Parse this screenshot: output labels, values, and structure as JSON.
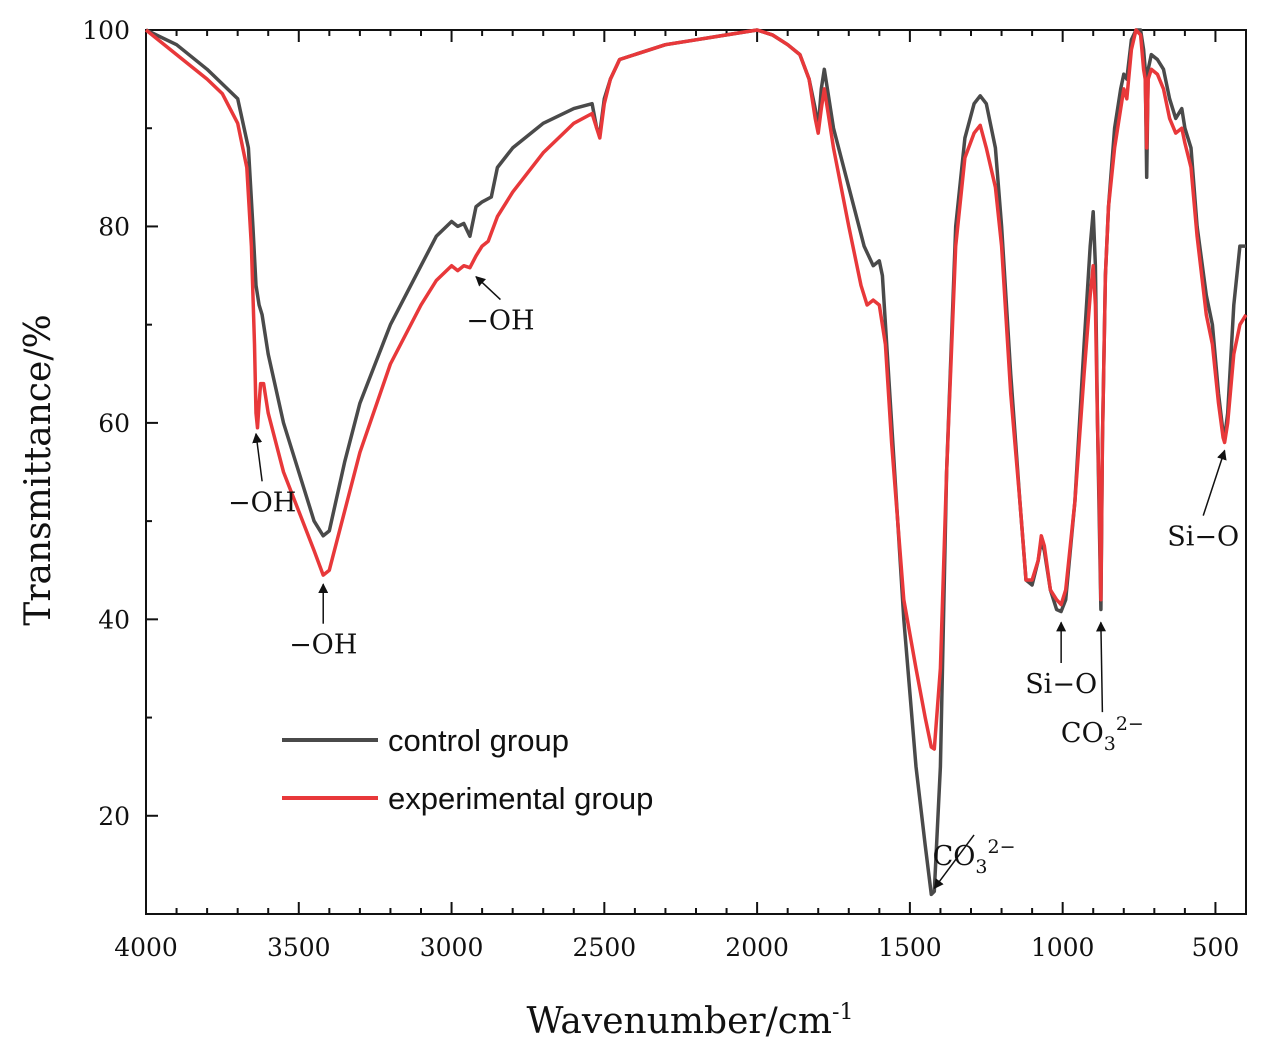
{
  "chart_data": {
    "type": "line",
    "title": "",
    "xlabel": "Wavenumber/cm",
    "xlabel_superscript": "-1",
    "ylabel": "Transmittance/%",
    "xlim": [
      4000,
      400
    ],
    "ylim": [
      10,
      100
    ],
    "x_ticks": [
      4000,
      3500,
      3000,
      2500,
      2000,
      1500,
      1000,
      500
    ],
    "y_ticks": [
      20,
      40,
      60,
      80,
      100
    ],
    "grid": false,
    "legend_position": "lower-left",
    "series": [
      {
        "name": "control group",
        "color": "#4a4a4a",
        "points": [
          [
            4000,
            100
          ],
          [
            3900,
            98.5
          ],
          [
            3800,
            96
          ],
          [
            3700,
            93
          ],
          [
            3665,
            88
          ],
          [
            3650,
            80
          ],
          [
            3640,
            74
          ],
          [
            3630,
            72
          ],
          [
            3620,
            71
          ],
          [
            3600,
            67
          ],
          [
            3550,
            60
          ],
          [
            3500,
            55
          ],
          [
            3450,
            50
          ],
          [
            3420,
            48.5
          ],
          [
            3400,
            49
          ],
          [
            3350,
            56
          ],
          [
            3300,
            62
          ],
          [
            3200,
            70
          ],
          [
            3100,
            76
          ],
          [
            3050,
            79
          ],
          [
            3000,
            80.5
          ],
          [
            2980,
            80
          ],
          [
            2960,
            80.3
          ],
          [
            2940,
            79
          ],
          [
            2920,
            82
          ],
          [
            2900,
            82.5
          ],
          [
            2870,
            83
          ],
          [
            2850,
            86
          ],
          [
            2800,
            88
          ],
          [
            2700,
            90.5
          ],
          [
            2600,
            92
          ],
          [
            2540,
            92.5
          ],
          [
            2525,
            90
          ],
          [
            2515,
            89.5
          ],
          [
            2500,
            93
          ],
          [
            2480,
            95
          ],
          [
            2450,
            97
          ],
          [
            2300,
            98.5
          ],
          [
            2200,
            99
          ],
          [
            2100,
            99.5
          ],
          [
            2000,
            100
          ],
          [
            1950,
            99.5
          ],
          [
            1900,
            98.5
          ],
          [
            1860,
            97.5
          ],
          [
            1830,
            95
          ],
          [
            1810,
            92
          ],
          [
            1800,
            90
          ],
          [
            1790,
            94
          ],
          [
            1780,
            96
          ],
          [
            1770,
            94
          ],
          [
            1750,
            90
          ],
          [
            1700,
            84
          ],
          [
            1650,
            78
          ],
          [
            1620,
            76
          ],
          [
            1600,
            76.5
          ],
          [
            1590,
            75
          ],
          [
            1560,
            60
          ],
          [
            1520,
            40
          ],
          [
            1480,
            25
          ],
          [
            1450,
            17
          ],
          [
            1430,
            12
          ],
          [
            1420,
            12.3
          ],
          [
            1400,
            25
          ],
          [
            1380,
            55
          ],
          [
            1350,
            80
          ],
          [
            1320,
            89
          ],
          [
            1290,
            92.5
          ],
          [
            1270,
            93.3
          ],
          [
            1250,
            92.5
          ],
          [
            1220,
            88
          ],
          [
            1200,
            80
          ],
          [
            1170,
            65
          ],
          [
            1140,
            52
          ],
          [
            1120,
            44
          ],
          [
            1100,
            43.5
          ],
          [
            1080,
            46
          ],
          [
            1070,
            48
          ],
          [
            1060,
            47
          ],
          [
            1040,
            43
          ],
          [
            1020,
            41
          ],
          [
            1005,
            40.8
          ],
          [
            990,
            42
          ],
          [
            960,
            52
          ],
          [
            930,
            68
          ],
          [
            910,
            78
          ],
          [
            900,
            81.5
          ],
          [
            893,
            76
          ],
          [
            886,
            60
          ],
          [
            880,
            50
          ],
          [
            875,
            41
          ],
          [
            870,
            58
          ],
          [
            860,
            75
          ],
          [
            850,
            82
          ],
          [
            830,
            90
          ],
          [
            810,
            94
          ],
          [
            800,
            95.5
          ],
          [
            790,
            95
          ],
          [
            775,
            99
          ],
          [
            760,
            100
          ],
          [
            745,
            100
          ],
          [
            735,
            98
          ],
          [
            730,
            96
          ],
          [
            725,
            85
          ],
          [
            720,
            96
          ],
          [
            710,
            97.5
          ],
          [
            690,
            97
          ],
          [
            670,
            96
          ],
          [
            650,
            93
          ],
          [
            630,
            91
          ],
          [
            610,
            92
          ],
          [
            600,
            90
          ],
          [
            580,
            88
          ],
          [
            560,
            80
          ],
          [
            530,
            73
          ],
          [
            510,
            70
          ],
          [
            490,
            63
          ],
          [
            475,
            59
          ],
          [
            470,
            58.5
          ],
          [
            460,
            61
          ],
          [
            440,
            72
          ],
          [
            420,
            78
          ],
          [
            400,
            78
          ]
        ]
      },
      {
        "name": "experimental group",
        "color": "#e8383a",
        "points": [
          [
            4000,
            100
          ],
          [
            3900,
            97.5
          ],
          [
            3800,
            95
          ],
          [
            3750,
            93.5
          ],
          [
            3700,
            90.5
          ],
          [
            3670,
            86
          ],
          [
            3655,
            78
          ],
          [
            3645,
            68
          ],
          [
            3640,
            61
          ],
          [
            3635,
            59.5
          ],
          [
            3630,
            62
          ],
          [
            3625,
            64
          ],
          [
            3615,
            64
          ],
          [
            3600,
            61
          ],
          [
            3550,
            55
          ],
          [
            3500,
            51
          ],
          [
            3450,
            47
          ],
          [
            3420,
            44.5
          ],
          [
            3400,
            45
          ],
          [
            3350,
            51
          ],
          [
            3300,
            57
          ],
          [
            3200,
            66
          ],
          [
            3100,
            72
          ],
          [
            3050,
            74.5
          ],
          [
            3000,
            76
          ],
          [
            2980,
            75.5
          ],
          [
            2960,
            76
          ],
          [
            2940,
            75.8
          ],
          [
            2920,
            77
          ],
          [
            2900,
            78
          ],
          [
            2880,
            78.5
          ],
          [
            2850,
            81
          ],
          [
            2800,
            83.5
          ],
          [
            2700,
            87.5
          ],
          [
            2600,
            90.5
          ],
          [
            2540,
            91.5
          ],
          [
            2525,
            90
          ],
          [
            2515,
            89
          ],
          [
            2500,
            92.5
          ],
          [
            2480,
            95
          ],
          [
            2450,
            97
          ],
          [
            2300,
            98.5
          ],
          [
            2200,
            99
          ],
          [
            2100,
            99.5
          ],
          [
            2000,
            100
          ],
          [
            1950,
            99.5
          ],
          [
            1900,
            98.5
          ],
          [
            1860,
            97.5
          ],
          [
            1830,
            95
          ],
          [
            1810,
            91
          ],
          [
            1800,
            89.5
          ],
          [
            1790,
            92
          ],
          [
            1780,
            94
          ],
          [
            1770,
            92
          ],
          [
            1750,
            88
          ],
          [
            1700,
            80
          ],
          [
            1660,
            74
          ],
          [
            1640,
            72
          ],
          [
            1620,
            72.5
          ],
          [
            1600,
            72
          ],
          [
            1580,
            68
          ],
          [
            1560,
            58
          ],
          [
            1520,
            42
          ],
          [
            1480,
            35
          ],
          [
            1450,
            30
          ],
          [
            1430,
            27
          ],
          [
            1420,
            26.8
          ],
          [
            1400,
            35
          ],
          [
            1380,
            55
          ],
          [
            1350,
            78
          ],
          [
            1320,
            87
          ],
          [
            1290,
            89.5
          ],
          [
            1270,
            90.3
          ],
          [
            1250,
            88
          ],
          [
            1220,
            84
          ],
          [
            1200,
            78
          ],
          [
            1170,
            63
          ],
          [
            1140,
            52
          ],
          [
            1120,
            44
          ],
          [
            1100,
            44
          ],
          [
            1080,
            46
          ],
          [
            1070,
            48.5
          ],
          [
            1060,
            47.5
          ],
          [
            1040,
            43
          ],
          [
            1020,
            42
          ],
          [
            1005,
            41.5
          ],
          [
            990,
            43
          ],
          [
            960,
            52
          ],
          [
            930,
            65
          ],
          [
            910,
            73
          ],
          [
            900,
            76
          ],
          [
            893,
            72
          ],
          [
            886,
            60
          ],
          [
            880,
            52
          ],
          [
            875,
            42
          ],
          [
            870,
            58
          ],
          [
            860,
            75
          ],
          [
            850,
            82
          ],
          [
            830,
            88
          ],
          [
            810,
            92
          ],
          [
            800,
            94
          ],
          [
            790,
            93
          ],
          [
            775,
            98
          ],
          [
            760,
            100
          ],
          [
            745,
            99.5
          ],
          [
            735,
            96
          ],
          [
            730,
            95
          ],
          [
            725,
            88
          ],
          [
            720,
            95
          ],
          [
            710,
            96
          ],
          [
            690,
            95.5
          ],
          [
            670,
            94
          ],
          [
            650,
            91
          ],
          [
            630,
            89.5
          ],
          [
            610,
            90
          ],
          [
            600,
            88.5
          ],
          [
            580,
            86
          ],
          [
            560,
            79
          ],
          [
            530,
            71
          ],
          [
            510,
            68
          ],
          [
            490,
            62
          ],
          [
            475,
            58.5
          ],
          [
            470,
            58
          ],
          [
            460,
            60
          ],
          [
            440,
            67
          ],
          [
            420,
            70
          ],
          [
            400,
            71
          ]
        ]
      }
    ],
    "annotations": [
      {
        "text": "−OH",
        "at": [
          3640,
          59.5
        ],
        "label_at": [
          3620,
          51
        ]
      },
      {
        "text": "−OH",
        "at": [
          3420,
          44.2
        ],
        "label_at": [
          3420,
          36.5
        ]
      },
      {
        "text": "−OH",
        "at": [
          2920,
          75.5
        ],
        "label_at": [
          2840,
          69.5
        ]
      },
      {
        "text": "CO",
        "sub": "3",
        "sup": "2−",
        "at": [
          1420,
          12
        ],
        "label_at": [
          1290,
          15
        ]
      },
      {
        "text": "Si−O",
        "at": [
          1005,
          40.3
        ],
        "label_at": [
          1005,
          32.5
        ]
      },
      {
        "text": "CO",
        "sub": "3",
        "sup": "2−",
        "at": [
          875,
          40.3
        ],
        "label_at": [
          870,
          27.5
        ]
      },
      {
        "text": "Si−O",
        "at": [
          470,
          57.8
        ],
        "label_at": [
          540,
          47.5
        ]
      }
    ]
  }
}
